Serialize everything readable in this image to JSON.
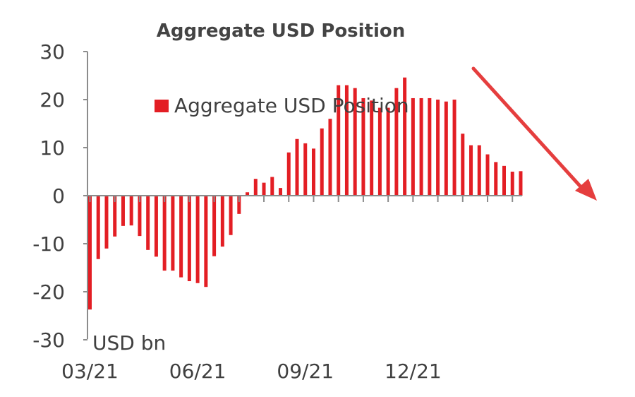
{
  "chart_data": {
    "type": "bar",
    "title": "Aggregate USD Position",
    "unit_label": "USD bn",
    "legend": [
      "Aggregate USD Position"
    ],
    "ylim": [
      -30,
      30
    ],
    "yticks": [
      "30",
      "20",
      "10",
      "0",
      "-10",
      "-20",
      "-30"
    ],
    "yticks_values": [
      30,
      20,
      10,
      0,
      -10,
      -20,
      -30
    ],
    "xtick_labels": [
      "03/21",
      "06/21",
      "09/21",
      "12/21"
    ],
    "xtick_bar_index": [
      0,
      13,
      26,
      39
    ],
    "grid": false,
    "series": [
      {
        "name": "Aggregate USD Position",
        "color": "#e31e24",
        "values": [
          -23.7,
          -13.2,
          -11.0,
          -8.5,
          -6.3,
          -6.2,
          -8.4,
          -11.3,
          -12.7,
          -15.6,
          -15.6,
          -17.0,
          -17.8,
          -18.2,
          -19.0,
          -12.6,
          -10.6,
          -8.2,
          -3.8,
          0.7,
          3.5,
          2.7,
          3.9,
          1.6,
          9.0,
          11.8,
          10.9,
          9.8,
          14.0,
          16.0,
          23.0,
          23.0,
          22.4,
          20.3,
          19.8,
          18.3,
          18.3,
          22.4,
          24.6,
          20.3,
          20.3,
          20.3,
          20.0,
          19.6,
          20.0,
          12.9,
          10.5,
          10.5,
          8.6,
          7.0,
          6.2,
          5.0,
          5.1
        ]
      }
    ]
  },
  "annotation": {
    "arrow_color": "#e53e3e",
    "arrow_direction": "down-right"
  }
}
